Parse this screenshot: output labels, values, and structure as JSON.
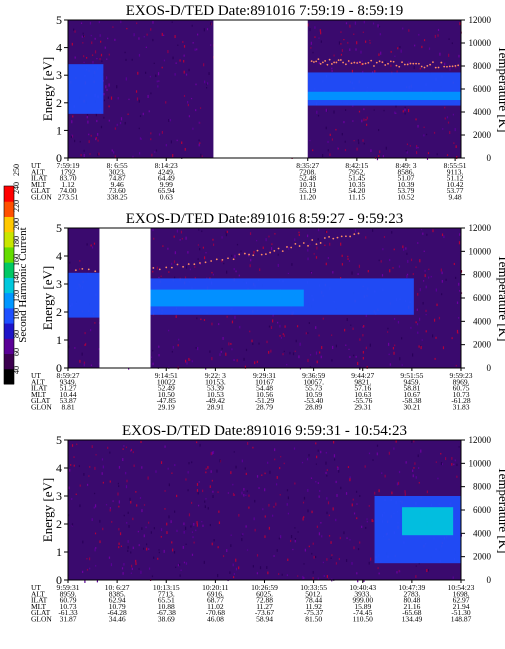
{
  "colorbar": {
    "label": "Second Harmonic Current",
    "ticks": [
      "40",
      "60",
      "80",
      "100",
      "120",
      "140",
      "160",
      "180",
      "200",
      "220",
      "240",
      "250"
    ],
    "colors": [
      "#000000",
      "#3c0050",
      "#5a0096",
      "#1e14c8",
      "#1e50ff",
      "#0096ff",
      "#00c8dc",
      "#00c864",
      "#64dc00",
      "#c8e600",
      "#ffc800",
      "#ff5000",
      "#ff0000"
    ]
  },
  "chart_data": [
    {
      "type": "heatmap",
      "title": "EXOS-D/TED   Date:891016  7:59:19 - 8:59:19",
      "ylabel": "Energy [eV]",
      "y2label": "Temperature [K]",
      "ylim": [
        0,
        5
      ],
      "y2lim": [
        0,
        12000
      ],
      "yticks": [
        "0",
        "1",
        "2",
        "3",
        "4",
        "5"
      ],
      "y2ticks": [
        "0",
        "2000",
        "4000",
        "6000",
        "8000",
        "10000",
        "12000"
      ],
      "gaps": [
        [
          0.37,
          0.61
        ]
      ],
      "bands": [
        {
          "x0": 0.0,
          "x1": 0.09,
          "lo": 1.6,
          "hi": 3.4,
          "color": "#1e50ff"
        },
        {
          "x0": 0.61,
          "x1": 1.0,
          "lo": 1.9,
          "hi": 3.1,
          "color": "#1e50ff"
        },
        {
          "x0": 0.61,
          "x1": 1.0,
          "lo": 2.1,
          "hi": 2.4,
          "color": "#0096ff"
        }
      ],
      "temp_points": [
        [
          0.62,
          8400
        ],
        [
          0.7,
          8300
        ],
        [
          0.8,
          8200
        ],
        [
          0.9,
          8100
        ],
        [
          1.0,
          8100
        ]
      ],
      "table": {
        "labels": [
          "UT",
          "ALT",
          "ILAT",
          "MLT",
          "GLAT",
          "GLON"
        ],
        "cols": [
          {
            "pos": 0.0,
            "v": [
              "7:59:19",
              "1792",
              "83.70",
              "1.12",
              "74.00",
              "273.51"
            ]
          },
          {
            "pos": 0.125,
            "v": [
              "8: 6:55",
              "3023.",
              "74.87",
              "9.46",
              "73.60",
              "338.25"
            ]
          },
          {
            "pos": 0.25,
            "v": [
              "8:14:23",
              "4249.",
              "64.49",
              "9.99",
              "65.94",
              "0.63"
            ]
          },
          {
            "pos": 0.61,
            "v": [
              "8:35:27",
              "7208.",
              "52.48",
              "10.31",
              "55.19",
              "11.20"
            ]
          },
          {
            "pos": 0.735,
            "v": [
              "8:42:15",
              "7952.",
              "51.45",
              "10.35",
              "54.20",
              "11.15"
            ]
          },
          {
            "pos": 0.86,
            "v": [
              "8:49: 3",
              "8586.",
              "51.07",
              "10.39",
              "53.79",
              "10.52"
            ]
          },
          {
            "pos": 0.985,
            "v": [
              "8:55:51",
              "9113.",
              "51.12",
              "10.42",
              "53.77",
              "9.48"
            ]
          }
        ]
      }
    },
    {
      "type": "heatmap",
      "title": "EXOS-D/TED   Date:891016  8:59:27 - 9:59:23",
      "ylabel": "Energy [eV]",
      "y2label": "Temperature [K]",
      "ylim": [
        0,
        5
      ],
      "y2lim": [
        0,
        12000
      ],
      "yticks": [
        "0",
        "1",
        "2",
        "3",
        "4",
        "5"
      ],
      "y2ticks": [
        "0",
        "2000",
        "4000",
        "6000",
        "8000",
        "10000",
        "12000"
      ],
      "gaps": [
        [
          0.08,
          0.21
        ]
      ],
      "bands": [
        {
          "x0": 0.0,
          "x1": 0.08,
          "lo": 1.8,
          "hi": 3.4,
          "color": "#1e50ff"
        },
        {
          "x0": 0.21,
          "x1": 0.88,
          "lo": 1.9,
          "hi": 3.2,
          "color": "#1e50ff"
        },
        {
          "x0": 0.21,
          "x1": 0.6,
          "lo": 2.2,
          "hi": 2.8,
          "color": "#0096ff"
        }
      ],
      "temp_points": [
        [
          0.02,
          8400
        ],
        [
          0.25,
          8500
        ],
        [
          0.45,
          9600
        ],
        [
          0.6,
          10600
        ],
        [
          0.75,
          11600
        ]
      ],
      "table": {
        "labels": [
          "UT",
          "ALT",
          "ILAT",
          "MLT",
          "GLAT",
          "GLON"
        ],
        "cols": [
          {
            "pos": 0.0,
            "v": [
              "8:59:27",
              "9349.",
              "51.27",
              "10.44",
              "53.87",
              "8.81"
            ]
          },
          {
            "pos": 0.25,
            "v": [
              "9:14:51",
              "10022",
              "52.49",
              "10.50",
              "-47.85",
              "29.19"
            ]
          },
          {
            "pos": 0.375,
            "v": [
              "9:22: 3",
              "10153.",
              "53.39",
              "10.53",
              "-49.42",
              "28.91"
            ]
          },
          {
            "pos": 0.5,
            "v": [
              "9:29:31",
              "10167",
              "54.48",
              "10.56",
              "-51.29",
              "28.79"
            ]
          },
          {
            "pos": 0.625,
            "v": [
              "9:36:59",
              "10057.",
              "55.73",
              "10.59",
              "-53.40",
              "28.89"
            ]
          },
          {
            "pos": 0.75,
            "v": [
              "9:44:27",
              "9821.",
              "57.16",
              "10.63",
              "-55.76",
              "29.31"
            ]
          },
          {
            "pos": 0.875,
            "v": [
              "9:51:55",
              "9459.",
              "58.81",
              "10.67",
              "-58.38",
              "30.21"
            ]
          },
          {
            "pos": 1.0,
            "v": [
              "9:59:23",
              "8969.",
              "60.75",
              "10.73",
              "-61.28",
              "31.83"
            ]
          }
        ]
      }
    },
    {
      "type": "heatmap",
      "title": "EXOS-D/TED   Date:891016  9:59:31 - 10:54:23",
      "ylabel": "Energy [eV]",
      "y2label": "Temperature [K]",
      "ylim": [
        0,
        5
      ],
      "y2lim": [
        0,
        12000
      ],
      "yticks": [
        "0",
        "1",
        "2",
        "3",
        "4",
        "5"
      ],
      "y2ticks": [
        "0",
        "2000",
        "4000",
        "6000",
        "8000",
        "10000",
        "12000"
      ],
      "gaps": [],
      "bands": [
        {
          "x0": 0.78,
          "x1": 1.0,
          "lo": 0.6,
          "hi": 3.0,
          "color": "#1e50ff"
        },
        {
          "x0": 0.85,
          "x1": 0.98,
          "lo": 1.6,
          "hi": 2.6,
          "color": "#00c8dc"
        }
      ],
      "temp_points": [],
      "table": {
        "labels": [
          "UT",
          "ALT",
          "ILAT",
          "MLT",
          "GLAT",
          "GLON"
        ],
        "cols": [
          {
            "pos": 0.0,
            "v": [
              "9:59:31",
              "8959.",
              "60.79",
              "10.73",
              "-61.33",
              "31.87"
            ]
          },
          {
            "pos": 0.125,
            "v": [
              "10: 6:27",
              "8385.",
              "62.94",
              "10.79",
              "-64.28",
              "34.46"
            ]
          },
          {
            "pos": 0.25,
            "v": [
              "10:13:15",
              "7713.",
              "65.51",
              "10.88",
              "-67.38",
              "38.69"
            ]
          },
          {
            "pos": 0.375,
            "v": [
              "10:20:11",
              "6916.",
              "68.77",
              "11.02",
              "-70.68",
              "46.08"
            ]
          },
          {
            "pos": 0.5,
            "v": [
              "10:26:59",
              "6025.",
              "72.88",
              "11.27",
              "-73.67",
              "58.94"
            ]
          },
          {
            "pos": 0.625,
            "v": [
              "10:33:55",
              "5012.",
              "78.44",
              "11.92",
              "-75.37",
              "81.50"
            ]
          },
          {
            "pos": 0.75,
            "v": [
              "10:40:43",
              "3933.",
              "999.00",
              "15.89",
              "-74.45",
              "110.50"
            ]
          },
          {
            "pos": 0.875,
            "v": [
              "10:47:39",
              "2783.",
              "80.48",
              "21.16",
              "-65.68",
              "134.49"
            ]
          },
          {
            "pos": 1.0,
            "v": [
              "10:54:23",
              "1698.",
              "62.97",
              "21.94",
              "-51.30",
              "148.87"
            ]
          }
        ]
      }
    }
  ]
}
